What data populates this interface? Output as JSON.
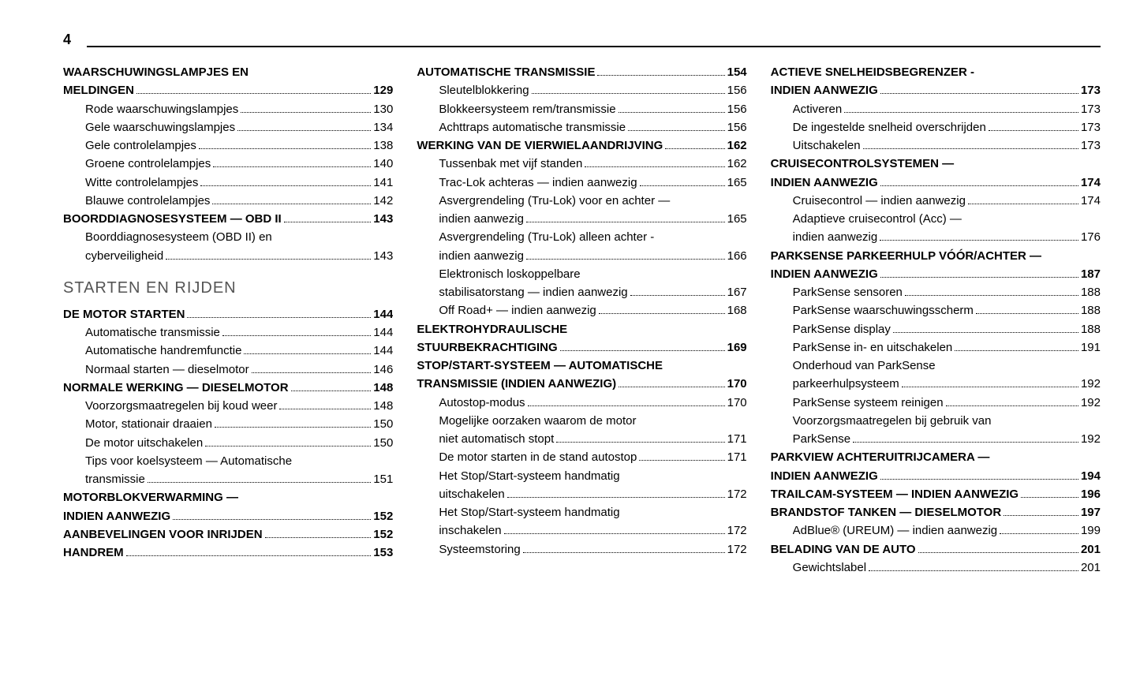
{
  "page_number": "4",
  "colors": {
    "text": "#000000",
    "section_title": "#555555",
    "background": "#ffffff",
    "rule": "#000000"
  },
  "typography": {
    "base_family": "Arial",
    "base_size_pt": 11,
    "section_title_size_pt": 15,
    "page_number_size_pt": 13
  },
  "columns": [
    {
      "entries": [
        {
          "type": "cont",
          "level": 1,
          "text": "WAARSCHUWINGSLAMPJES EN"
        },
        {
          "type": "item",
          "level": 1,
          "text": "MELDINGEN",
          "page": "129"
        },
        {
          "type": "item",
          "level": 2,
          "text": "Rode waarschuwingslampjes",
          "page": "130"
        },
        {
          "type": "item",
          "level": 2,
          "text": "Gele waarschuwingslampjes",
          "page": "134"
        },
        {
          "type": "item",
          "level": 2,
          "text": "Gele controlelampjes",
          "page": "138"
        },
        {
          "type": "item",
          "level": 2,
          "text": "Groene controlelampjes",
          "page": "140"
        },
        {
          "type": "item",
          "level": 2,
          "text": "Witte controlelampjes",
          "page": "141"
        },
        {
          "type": "item",
          "level": 2,
          "text": "Blauwe controlelampjes",
          "page": "142"
        },
        {
          "type": "item",
          "level": 1,
          "text": "BOORDDIAGNOSESYSTEEM — OBD II",
          "page": "143"
        },
        {
          "type": "cont",
          "level": 2,
          "text": "Boorddiagnosesysteem (OBD II) en"
        },
        {
          "type": "item",
          "level": 2,
          "text": "cyberveiligheid",
          "page": "143"
        },
        {
          "type": "section",
          "text": "STARTEN EN RIJDEN"
        },
        {
          "type": "item",
          "level": 1,
          "text": "DE MOTOR STARTEN",
          "page": "144"
        },
        {
          "type": "item",
          "level": 2,
          "text": "Automatische transmissie",
          "page": "144"
        },
        {
          "type": "item",
          "level": 2,
          "text": "Automatische handremfunctie",
          "page": "144"
        },
        {
          "type": "item",
          "level": 2,
          "text": "Normaal starten — dieselmotor",
          "page": "146"
        },
        {
          "type": "item",
          "level": 1,
          "text": "NORMALE WERKING — DIESELMOTOR",
          "page": "148"
        },
        {
          "type": "item",
          "level": 2,
          "text": "Voorzorgsmaatregelen bij koud weer",
          "page": "148"
        },
        {
          "type": "item",
          "level": 2,
          "text": "Motor, stationair draaien",
          "page": "150"
        },
        {
          "type": "item",
          "level": 2,
          "text": "De motor uitschakelen",
          "page": "150"
        },
        {
          "type": "cont",
          "level": 2,
          "text": "Tips voor koelsysteem — Automatische"
        },
        {
          "type": "item",
          "level": 2,
          "text": "transmissie",
          "page": "151"
        },
        {
          "type": "cont",
          "level": 1,
          "text": "MOTORBLOKVERWARMING —"
        },
        {
          "type": "item",
          "level": 1,
          "text": "INDIEN AANWEZIG",
          "page": "152"
        },
        {
          "type": "item",
          "level": 1,
          "text": "AANBEVELINGEN VOOR INRIJDEN",
          "page": "152"
        },
        {
          "type": "item",
          "level": 1,
          "text": "HANDREM",
          "page": "153"
        }
      ]
    },
    {
      "entries": [
        {
          "type": "item",
          "level": 1,
          "text": "AUTOMATISCHE TRANSMISSIE",
          "page": "154"
        },
        {
          "type": "item",
          "level": 2,
          "text": "Sleutelblokkering",
          "page": "156"
        },
        {
          "type": "item",
          "level": 2,
          "text": "Blokkeersysteem rem/transmissie",
          "page": "156"
        },
        {
          "type": "item",
          "level": 2,
          "text": "Achttraps automatische transmissie",
          "page": "156"
        },
        {
          "type": "item",
          "level": 1,
          "text": "WERKING VAN DE VIERWIELAANDRIJVING",
          "page": "162"
        },
        {
          "type": "item",
          "level": 2,
          "text": "Tussenbak met vijf standen",
          "page": "162"
        },
        {
          "type": "item",
          "level": 2,
          "text": "Trac-Lok achteras — indien aanwezig",
          "page": "165"
        },
        {
          "type": "cont",
          "level": 2,
          "text": "Asvergrendeling (Tru-Lok) voor en achter —"
        },
        {
          "type": "item",
          "level": 2,
          "text": "indien aanwezig",
          "page": "165"
        },
        {
          "type": "cont",
          "level": 2,
          "text": "Asvergrendeling (Tru-Lok) alleen achter -"
        },
        {
          "type": "item",
          "level": 2,
          "text": "indien aanwezig",
          "page": "166"
        },
        {
          "type": "cont",
          "level": 2,
          "text": "Elektronisch loskoppelbare"
        },
        {
          "type": "item",
          "level": 2,
          "text": "stabilisatorstang — indien aanwezig",
          "page": "167"
        },
        {
          "type": "item",
          "level": 2,
          "text": "Off Road+ — indien aanwezig",
          "page": "168"
        },
        {
          "type": "cont",
          "level": 1,
          "text": "ELEKTROHYDRAULISCHE"
        },
        {
          "type": "item",
          "level": 1,
          "text": "STUURBEKRACHTIGING",
          "page": "169"
        },
        {
          "type": "cont",
          "level": 1,
          "text": "STOP/START-SYSTEEM — AUTOMATISCHE"
        },
        {
          "type": "item",
          "level": 1,
          "text": "TRANSMISSIE (INDIEN AANWEZIG)",
          "page": "170"
        },
        {
          "type": "item",
          "level": 2,
          "text": "Autostop-modus",
          "page": "170"
        },
        {
          "type": "cont",
          "level": 2,
          "text": "Mogelijke oorzaken waarom de motor"
        },
        {
          "type": "item",
          "level": 2,
          "text": "niet automatisch stopt",
          "page": "171"
        },
        {
          "type": "item",
          "level": 2,
          "text": "De motor starten in de stand autostop",
          "page": "171"
        },
        {
          "type": "cont",
          "level": 2,
          "text": "Het Stop/Start-systeem handmatig"
        },
        {
          "type": "item",
          "level": 2,
          "text": "uitschakelen",
          "page": "172"
        },
        {
          "type": "cont",
          "level": 2,
          "text": "Het Stop/Start-systeem handmatig"
        },
        {
          "type": "item",
          "level": 2,
          "text": "inschakelen",
          "page": "172"
        },
        {
          "type": "item",
          "level": 2,
          "text": "Systeemstoring",
          "page": "172"
        }
      ]
    },
    {
      "entries": [
        {
          "type": "cont",
          "level": 1,
          "text": "ACTIEVE SNELHEIDSBEGRENZER -"
        },
        {
          "type": "item",
          "level": 1,
          "text": "INDIEN AANWEZIG",
          "page": "173"
        },
        {
          "type": "item",
          "level": 2,
          "text": "Activeren",
          "page": "173"
        },
        {
          "type": "item",
          "level": 2,
          "text": "De ingestelde snelheid overschrijden",
          "page": "173"
        },
        {
          "type": "item",
          "level": 2,
          "text": "Uitschakelen",
          "page": "173"
        },
        {
          "type": "cont",
          "level": 1,
          "text": "CRUISECONTROLSYSTEMEN —"
        },
        {
          "type": "item",
          "level": 1,
          "text": "INDIEN AANWEZIG",
          "page": "174"
        },
        {
          "type": "item",
          "level": 2,
          "text": "Cruisecontrol — indien aanwezig",
          "page": "174"
        },
        {
          "type": "cont",
          "level": 2,
          "text": "Adaptieve cruisecontrol (Acc) —"
        },
        {
          "type": "item",
          "level": 2,
          "text": "indien aanwezig",
          "page": "176"
        },
        {
          "type": "cont",
          "level": 1,
          "text": "PARKSENSE PARKEERHULP VÓÓR/ACHTER —"
        },
        {
          "type": "item",
          "level": 1,
          "text": "INDIEN AANWEZIG",
          "page": "187"
        },
        {
          "type": "item",
          "level": 2,
          "text": "ParkSense sensoren",
          "page": "188"
        },
        {
          "type": "item",
          "level": 2,
          "text": "ParkSense waarschuwingsscherm",
          "page": "188"
        },
        {
          "type": "item",
          "level": 2,
          "text": "ParkSense display",
          "page": "188"
        },
        {
          "type": "item",
          "level": 2,
          "text": "ParkSense in- en uitschakelen",
          "page": "191"
        },
        {
          "type": "cont",
          "level": 2,
          "text": "Onderhoud van ParkSense"
        },
        {
          "type": "item",
          "level": 2,
          "text": "parkeerhulpsysteem",
          "page": "192"
        },
        {
          "type": "item",
          "level": 2,
          "text": "ParkSense systeem reinigen",
          "page": "192"
        },
        {
          "type": "cont",
          "level": 2,
          "text": "Voorzorgsmaatregelen bij gebruik van"
        },
        {
          "type": "item",
          "level": 2,
          "text": "ParkSense",
          "page": "192"
        },
        {
          "type": "cont",
          "level": 1,
          "text": "PARKVIEW ACHTERUITRIJCAMERA —"
        },
        {
          "type": "item",
          "level": 1,
          "text": "INDIEN AANWEZIG",
          "page": "194"
        },
        {
          "type": "item",
          "level": 1,
          "text": "TRAILCAM-SYSTEEM — INDIEN AANWEZIG",
          "page": "196"
        },
        {
          "type": "item",
          "level": 1,
          "text": "BRANDSTOF TANKEN — DIESELMOTOR",
          "page": "197"
        },
        {
          "type": "item",
          "level": 2,
          "text": "AdBlue® (UREUM) — indien aanwezig",
          "page": "199"
        },
        {
          "type": "item",
          "level": 1,
          "text": "BELADING VAN DE AUTO",
          "page": "201"
        },
        {
          "type": "item",
          "level": 2,
          "text": "Gewichtslabel",
          "page": "201"
        }
      ]
    }
  ]
}
